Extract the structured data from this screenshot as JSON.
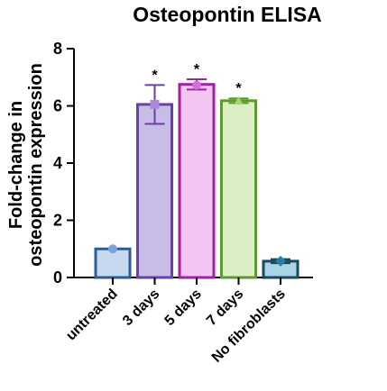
{
  "chart_data": {
    "type": "bar",
    "title": "Osteopontin ELISA",
    "ylabel_lines": [
      "Fold-change in",
      "osteopontin expression"
    ],
    "xlabel": "",
    "categories": [
      "untreated",
      "3 days",
      "5 days",
      "7 days",
      "No fibroblasts"
    ],
    "values": [
      1.0,
      6.05,
      6.75,
      6.18,
      0.57
    ],
    "error": [
      0.0,
      0.68,
      0.18,
      0.08,
      0.07
    ],
    "point_values": [
      1.0,
      6.05,
      6.72,
      6.17,
      0.57
    ],
    "annotations": [
      "",
      "*",
      "*",
      "*",
      ""
    ],
    "ylim": [
      0,
      8
    ],
    "yticks": [
      0,
      2,
      4,
      6,
      8
    ],
    "grid": false,
    "fill_colors": [
      "#c6d9ef",
      "#c8bde6",
      "#f3c6f1",
      "#dceec3",
      "#a8d4e3"
    ],
    "edge_colors": [
      "#2a5c9a",
      "#6a3fa8",
      "#a21fa6",
      "#5f9a2f",
      "#184a63"
    ],
    "point_colors": [
      "#7ea3d8",
      "#a88ad4",
      "#d56fdc",
      "#a8d470",
      "#2a7aa3"
    ]
  }
}
